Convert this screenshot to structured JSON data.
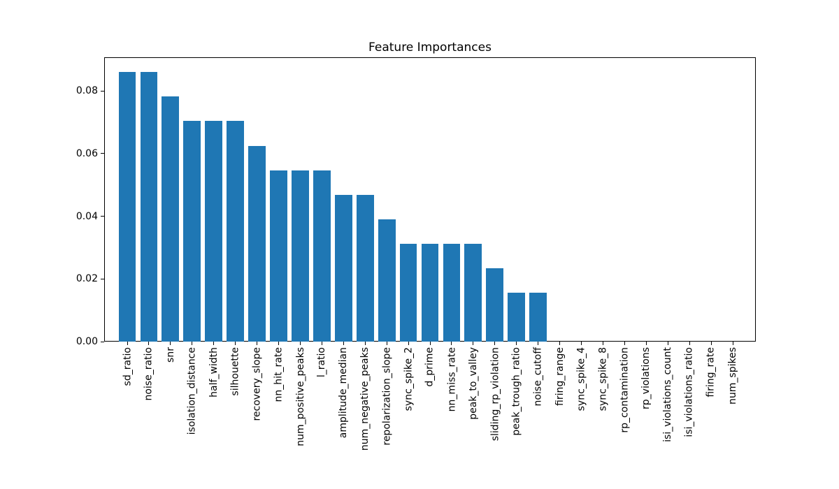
{
  "chart_data": {
    "type": "bar",
    "title": "Feature Importances",
    "xlabel": "",
    "ylabel": "",
    "grid": false,
    "legend_position": "none",
    "bar_color": "#1f77b4",
    "spine_color": "#000000",
    "text_color": "#000000",
    "ylim": [
      0,
      0.0907
    ],
    "yticks": [
      0.0,
      0.02,
      0.04,
      0.06,
      0.08
    ],
    "ytick_labels": [
      "0.00",
      "0.02",
      "0.04",
      "0.06",
      "0.08"
    ],
    "xtick_rotation_degrees": 90,
    "categories": [
      "sd_ratio",
      "noise_ratio",
      "snr",
      "isolation_distance",
      "half_width",
      "silhouette",
      "recovery_slope",
      "nn_hit_rate",
      "num_positive_peaks",
      "l_ratio",
      "amplitude_median",
      "num_negative_peaks",
      "repolarization_slope",
      "sync_spike_2",
      "d_prime",
      "nn_miss_rate",
      "peak_to_valley",
      "sliding_rp_violation",
      "peak_trough_ratio",
      "noise_cutoff",
      "firing_range",
      "sync_spike_4",
      "sync_spike_8",
      "rp_contamination",
      "rp_violations",
      "isi_violations_count",
      "isi_violations_ratio",
      "firing_rate",
      "num_spikes"
    ],
    "values": [
      0.0859375,
      0.0859375,
      0.078125,
      0.0703125,
      0.0703125,
      0.0703125,
      0.0625,
      0.0546875,
      0.0546875,
      0.0546875,
      0.046875,
      0.046875,
      0.0390625,
      0.03125,
      0.03125,
      0.03125,
      0.03125,
      0.0234375,
      0.015625,
      0.015625,
      0,
      0,
      0,
      0,
      0,
      0,
      0,
      0,
      0
    ]
  }
}
